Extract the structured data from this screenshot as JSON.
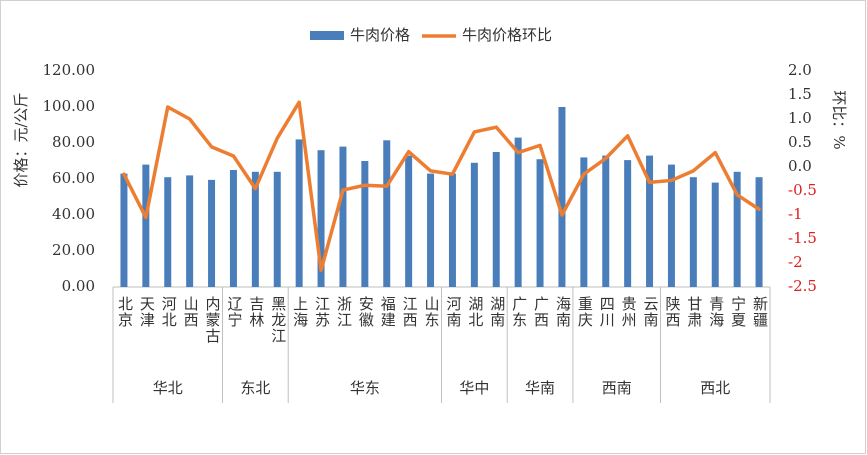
{
  "chart_data": {
    "type": "bar-line",
    "y_label": "价格：元/公斤",
    "y2_label": "环比：%",
    "groups": [
      {
        "name": "华北",
        "categories": [
          "北京",
          "天津",
          "河北",
          "山西",
          "内蒙古"
        ]
      },
      {
        "name": "东北",
        "categories": [
          "辽宁",
          "吉林",
          "黑龙江"
        ]
      },
      {
        "name": "华东",
        "categories": [
          "上海",
          "江苏",
          "浙江",
          "安徽",
          "福建",
          "江西",
          "山东"
        ]
      },
      {
        "name": "华中",
        "categories": [
          "河南",
          "湖北",
          "湖南"
        ]
      },
      {
        "name": "华南",
        "categories": [
          "广东",
          "广西",
          "海南"
        ]
      },
      {
        "name": "西南",
        "categories": [
          "重庆",
          "四川",
          "贵州",
          "云南"
        ]
      },
      {
        "name": "西北",
        "categories": [
          "陕西",
          "甘肃",
          "青海",
          "宁夏",
          "新疆"
        ]
      }
    ],
    "series": [
      {
        "name": "牛肉价格",
        "type": "bar",
        "color": "#4a7ebb",
        "axis": "y",
        "values": [
          63,
          68,
          61,
          62,
          59.5,
          65,
          64,
          64,
          82,
          76,
          78,
          70,
          81.5,
          73,
          63,
          63,
          69,
          75,
          83,
          71,
          100,
          72,
          73,
          70.5,
          73,
          68,
          61,
          58,
          64,
          61
        ]
      },
      {
        "name": "牛肉价格环比",
        "type": "line",
        "color": "#ed7d31",
        "axis": "y2",
        "values": [
          -0.15,
          -1.05,
          1.25,
          1.0,
          0.42,
          0.23,
          -0.45,
          0.6,
          1.35,
          -2.15,
          -0.48,
          -0.38,
          -0.4,
          0.32,
          -0.08,
          -0.15,
          0.73,
          0.83,
          0.3,
          0.45,
          -1.0,
          -0.15,
          0.18,
          0.65,
          -0.32,
          -0.28,
          -0.08,
          0.3,
          -0.58,
          -0.88
        ]
      }
    ],
    "ylim": [
      0,
      120
    ],
    "yticks": [
      {
        "value": 0,
        "label": "0.00"
      },
      {
        "value": 20,
        "label": "20.00"
      },
      {
        "value": 40,
        "label": "40.00"
      },
      {
        "value": 60,
        "label": "60.00"
      },
      {
        "value": 80,
        "label": "80.00"
      },
      {
        "value": 100,
        "label": "100.00"
      },
      {
        "value": 120,
        "label": "120.00"
      }
    ],
    "y2lim": [
      -2.5,
      2.0
    ],
    "y2ticks": [
      -2.5,
      -2,
      -1.5,
      -1,
      -0.5,
      {
        "value": 0,
        "label": "0.0"
      },
      0.5,
      {
        "value": 1,
        "label": "1.0"
      },
      1.5,
      {
        "value": 2,
        "label": "2.0"
      }
    ],
    "y2_negative_color": "#e02020",
    "grid": false,
    "legend": "top"
  }
}
